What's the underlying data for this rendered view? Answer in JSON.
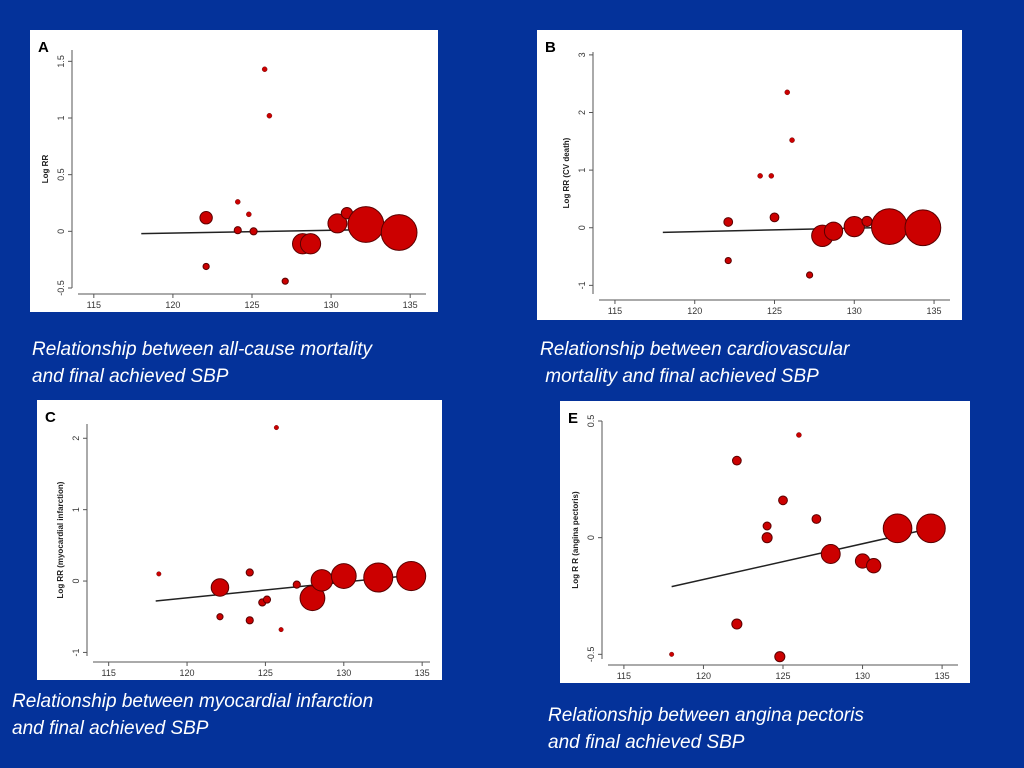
{
  "slide": {
    "background": "#04329a"
  },
  "chart_data": [
    {
      "id": "a",
      "panel_label": "A",
      "type": "scatter",
      "ylabel": "Log RR",
      "xlabel": "",
      "xlim": [
        114,
        136
      ],
      "ylim": [
        -0.5,
        1.6
      ],
      "xticks": [
        115,
        120,
        125,
        130,
        135
      ],
      "yticks": [
        -0.5,
        0,
        0.5,
        1,
        1.5
      ],
      "ytick_labels": [
        "-0.5",
        "0",
        "0.5",
        "1",
        "1.5"
      ],
      "points": [
        {
          "x": 125.8,
          "y": 1.43,
          "w": 0.1
        },
        {
          "x": 126.1,
          "y": 1.02,
          "w": 0.1
        },
        {
          "x": 124.1,
          "y": 0.26,
          "w": 0.1
        },
        {
          "x": 124.8,
          "y": 0.15,
          "w": 0.1
        },
        {
          "x": 122.1,
          "y": 0.12,
          "w": 0.6
        },
        {
          "x": 124.1,
          "y": 0.01,
          "w": 0.2
        },
        {
          "x": 125.1,
          "y": 0.0,
          "w": 0.2
        },
        {
          "x": 122.1,
          "y": -0.31,
          "w": 0.15
        },
        {
          "x": 127.1,
          "y": -0.44,
          "w": 0.15
        },
        {
          "x": 128.2,
          "y": -0.11,
          "w": 1.6
        },
        {
          "x": 128.7,
          "y": -0.11,
          "w": 1.6
        },
        {
          "x": 130.4,
          "y": 0.07,
          "w": 1.4
        },
        {
          "x": 131.0,
          "y": 0.16,
          "w": 0.5
        },
        {
          "x": 132.2,
          "y": 0.06,
          "w": 5.0
        },
        {
          "x": 134.3,
          "y": -0.01,
          "w": 5.0
        }
      ],
      "fit": {
        "x": [
          118,
          134.3
        ],
        "y": [
          -0.02,
          0.02
        ]
      },
      "caption": "Relationship between all-cause mortality\nand final achieved SBP"
    },
    {
      "id": "b",
      "panel_label": "B",
      "type": "scatter",
      "ylabel": "Log RR  (CV death)",
      "xlabel": "",
      "xlim": [
        114,
        136
      ],
      "ylim": [
        -1.15,
        3.05
      ],
      "xticks": [
        115,
        120,
        125,
        130,
        135
      ],
      "yticks": [
        -1,
        0,
        1,
        2,
        3
      ],
      "ytick_labels": [
        "-1",
        "0",
        "1",
        "2",
        "3"
      ],
      "points": [
        {
          "x": 125.8,
          "y": 2.35,
          "w": 0.1
        },
        {
          "x": 126.1,
          "y": 1.52,
          "w": 0.1
        },
        {
          "x": 124.1,
          "y": 0.9,
          "w": 0.1
        },
        {
          "x": 124.8,
          "y": 0.9,
          "w": 0.1
        },
        {
          "x": 122.1,
          "y": 0.1,
          "w": 0.3
        },
        {
          "x": 125.0,
          "y": 0.18,
          "w": 0.3
        },
        {
          "x": 122.1,
          "y": -0.57,
          "w": 0.15
        },
        {
          "x": 127.2,
          "y": -0.82,
          "w": 0.15
        },
        {
          "x": 128.0,
          "y": -0.14,
          "w": 1.8
        },
        {
          "x": 128.7,
          "y": -0.06,
          "w": 1.3
        },
        {
          "x": 130.0,
          "y": 0.02,
          "w": 1.6
        },
        {
          "x": 130.8,
          "y": 0.11,
          "w": 0.4
        },
        {
          "x": 132.2,
          "y": 0.02,
          "w": 5.0
        },
        {
          "x": 134.3,
          "y": 0.0,
          "w": 5.0
        }
      ],
      "fit": {
        "x": [
          118,
          134.3
        ],
        "y": [
          -0.08,
          0.02
        ]
      },
      "caption": "Relationship between cardiovascular\n mortality and final achieved SBP"
    },
    {
      "id": "c",
      "panel_label": "C",
      "type": "scatter",
      "ylabel": "Log RR (myocardial infarction)",
      "xlabel": "",
      "xlim": [
        114,
        135.5
      ],
      "ylim": [
        -1.05,
        2.2
      ],
      "xticks": [
        115,
        120,
        125,
        130,
        135
      ],
      "yticks": [
        -1,
        0,
        1,
        2
      ],
      "ytick_labels": [
        "-1",
        "0",
        "1",
        "2"
      ],
      "points": [
        {
          "x": 125.7,
          "y": 2.15,
          "w": 0.08
        },
        {
          "x": 118.2,
          "y": 0.1,
          "w": 0.08
        },
        {
          "x": 126.0,
          "y": -0.68,
          "w": 0.08
        },
        {
          "x": 122.1,
          "y": -0.09,
          "w": 1.2
        },
        {
          "x": 124.0,
          "y": 0.12,
          "w": 0.2
        },
        {
          "x": 122.1,
          "y": -0.5,
          "w": 0.15
        },
        {
          "x": 124.0,
          "y": -0.55,
          "w": 0.2
        },
        {
          "x": 124.8,
          "y": -0.3,
          "w": 0.2
        },
        {
          "x": 125.1,
          "y": -0.26,
          "w": 0.2
        },
        {
          "x": 127.0,
          "y": -0.05,
          "w": 0.2
        },
        {
          "x": 128.0,
          "y": -0.24,
          "w": 2.4
        },
        {
          "x": 128.6,
          "y": 0.01,
          "w": 1.8
        },
        {
          "x": 130.0,
          "y": 0.07,
          "w": 2.4
        },
        {
          "x": 132.2,
          "y": 0.05,
          "w": 3.3
        },
        {
          "x": 134.3,
          "y": 0.07,
          "w": 3.3
        }
      ],
      "fit": {
        "x": [
          118,
          134.3
        ],
        "y": [
          -0.28,
          0.08
        ]
      },
      "caption": "Relationship between myocardial infarction\nand final achieved SBP"
    },
    {
      "id": "e",
      "panel_label": "E",
      "type": "scatter",
      "ylabel": "Log R R (angina pectoris)",
      "xlabel": "",
      "xlim": [
        114,
        136
      ],
      "ylim": [
        -0.52,
        0.5
      ],
      "xticks": [
        115,
        120,
        125,
        130,
        135
      ],
      "yticks": [
        -0.5,
        0,
        0.5
      ],
      "ytick_labels": [
        "-0.5",
        "0",
        "0.5"
      ],
      "points": [
        {
          "x": 126.0,
          "y": 0.44,
          "w": 0.1
        },
        {
          "x": 122.1,
          "y": 0.33,
          "w": 0.3
        },
        {
          "x": 125.0,
          "y": 0.16,
          "w": 0.3
        },
        {
          "x": 127.1,
          "y": 0.08,
          "w": 0.3
        },
        {
          "x": 124.0,
          "y": 0.05,
          "w": 0.25
        },
        {
          "x": 124.0,
          "y": 0.0,
          "w": 0.4
        },
        {
          "x": 118.0,
          "y": -0.5,
          "w": 0.08
        },
        {
          "x": 122.1,
          "y": -0.37,
          "w": 0.4
        },
        {
          "x": 124.8,
          "y": -0.51,
          "w": 0.4
        },
        {
          "x": 128.0,
          "y": -0.07,
          "w": 1.4
        },
        {
          "x": 130.0,
          "y": -0.1,
          "w": 0.8
        },
        {
          "x": 130.7,
          "y": -0.12,
          "w": 0.8
        },
        {
          "x": 132.2,
          "y": 0.04,
          "w": 3.2
        },
        {
          "x": 134.3,
          "y": 0.04,
          "w": 3.2
        }
      ],
      "fit": {
        "x": [
          118,
          134.3
        ],
        "y": [
          -0.21,
          0.04
        ]
      },
      "caption": "Relationship between angina pectoris\nand final achieved SBP"
    }
  ],
  "style": {
    "marker_fill": "#cc0000",
    "marker_stroke": "#5a0000",
    "line_color": "#222222",
    "axis_color": "#555555"
  }
}
